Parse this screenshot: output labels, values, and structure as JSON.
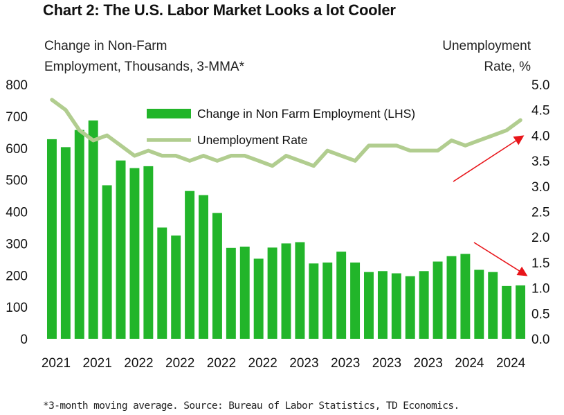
{
  "title": "Chart 2: The U.S. Labor Market Looks a lot Cooler",
  "left_axis_label": [
    "Change in Non-Farm",
    "Employment, Thousands, 3-MMA*"
  ],
  "right_axis_label": [
    "Unemployment",
    "Rate, %"
  ],
  "source": "*3-month moving average. Source: Bureau of Labor Statistics, TD Economics.",
  "colors": {
    "bars": "#22b52a",
    "line": "#b1cd8f",
    "arrow": "#e8151a"
  },
  "chart_data": {
    "type": "bar",
    "y_left": {
      "min": 0,
      "max": 800,
      "ticks": [
        "0",
        "100",
        "200",
        "300",
        "400",
        "500",
        "600",
        "700",
        "800"
      ]
    },
    "y_right": {
      "min": 0,
      "max": 5,
      "ticks": [
        "0.0",
        "0.5",
        "1.0",
        "1.5",
        "2.0",
        "2.5",
        "3.0",
        "3.5",
        "4.0",
        "4.5",
        "5.0"
      ]
    },
    "x_tick_labels": [
      "2021",
      "2021",
      "2022",
      "2022",
      "2022",
      "2022",
      "2023",
      "2023",
      "2023",
      "2023",
      "2024",
      "2024"
    ],
    "x_tick_every": 3,
    "series": [
      {
        "name": "Change in Non Farm Employment (LHS)",
        "type": "bar",
        "axis": "left",
        "values": [
          628,
          603,
          657,
          687,
          483,
          561,
          537,
          543,
          350,
          325,
          465,
          452,
          396,
          286,
          290,
          252,
          287,
          300,
          304,
          237,
          240,
          274,
          240,
          210,
          213,
          206,
          197,
          213,
          243,
          260,
          267,
          217,
          210,
          166,
          168
        ]
      },
      {
        "name": "Unemployment Rate",
        "type": "line",
        "axis": "right",
        "values": [
          4.7,
          4.5,
          4.1,
          3.9,
          4.0,
          3.8,
          3.6,
          3.7,
          3.6,
          3.6,
          3.5,
          3.6,
          3.5,
          3.6,
          3.6,
          3.5,
          3.4,
          3.6,
          3.5,
          3.4,
          3.7,
          3.6,
          3.5,
          3.8,
          3.8,
          3.8,
          3.7,
          3.7,
          3.7,
          3.9,
          3.8,
          3.9,
          4.0,
          4.1,
          4.3
        ]
      }
    ],
    "legend_position": "top-center",
    "grid": false
  }
}
